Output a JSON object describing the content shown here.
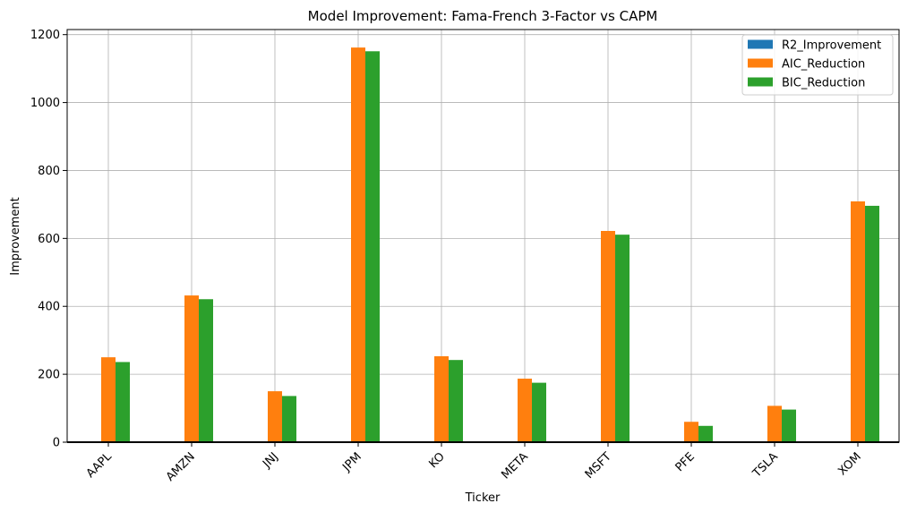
{
  "chart_data": {
    "type": "bar",
    "title": "Model Improvement: Fama-French 3-Factor vs CAPM",
    "xlabel": "Ticker",
    "ylabel": "Improvement",
    "categories": [
      "AAPL",
      "AMZN",
      "JNJ",
      "JPM",
      "KO",
      "META",
      "MSFT",
      "PFE",
      "TSLA",
      "XOM"
    ],
    "series": [
      {
        "name": "R2_Improvement",
        "color": "#1f77b4",
        "values": [
          0.1,
          0.1,
          0.1,
          0.1,
          0.1,
          0.1,
          0.1,
          0.1,
          0.1,
          0.1
        ]
      },
      {
        "name": "AIC_Reduction",
        "color": "#ff7f0e",
        "values": [
          250,
          432,
          150,
          1162,
          253,
          187,
          622,
          60,
          107,
          709
        ]
      },
      {
        "name": "BIC_Reduction",
        "color": "#2ca02c",
        "values": [
          236,
          421,
          136,
          1151,
          242,
          175,
          611,
          48,
          96,
          696
        ]
      }
    ],
    "ylim": [
      0,
      1215
    ],
    "yticks": [
      0,
      200,
      400,
      600,
      800,
      1000,
      1200
    ],
    "grid": true,
    "legend_position": "top-right"
  }
}
